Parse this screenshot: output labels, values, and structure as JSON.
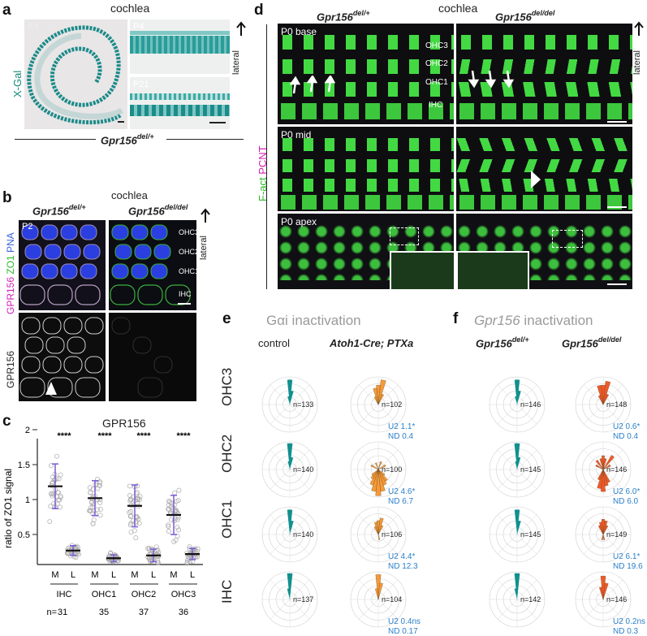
{
  "panel_labels": {
    "a": "a",
    "b": "b",
    "c": "c",
    "d": "d",
    "e": "e",
    "f": "f"
  },
  "panel_a": {
    "title": "cochlea",
    "stain": "X-Gal",
    "ages": [
      "P4",
      "P4",
      "P21"
    ],
    "genotype_base": "Gpr156",
    "genotype_sup": "del/+",
    "direction": "lateral"
  },
  "panel_b": {
    "title": "cochlea",
    "genotypes": [
      {
        "base": "Gpr156",
        "sup": "del/+"
      },
      {
        "base": "Gpr156",
        "sup": "del/del"
      }
    ],
    "age": "P2",
    "stain_labels": [
      "GPR156",
      "ZO1",
      "PNA"
    ],
    "stain_colors": [
      "#d21fb4",
      "#2eb82e",
      "#3a5fd9"
    ],
    "rows": [
      "OHC3",
      "OHC2",
      "OHC1",
      "IHC"
    ],
    "bottom_stain": "GPR156",
    "direction": "lateral"
  },
  "panel_c": {
    "title": "GPR156",
    "ylabel": "ratio of ZO1 signal",
    "yticks": [
      "0.5",
      "1",
      "1.5",
      "2"
    ],
    "significance": [
      "****",
      "****",
      "****",
      "****"
    ],
    "tick_labels": [
      "M",
      "L",
      "M",
      "L",
      "M",
      "L",
      "M",
      "L"
    ],
    "groups": [
      "IHC",
      "OHC1",
      "OHC2",
      "OHC3"
    ],
    "n_prefix": "n=",
    "counts": [
      "31",
      "35",
      "37",
      "36"
    ]
  },
  "chart_data": {
    "type": "scatter",
    "title": "GPR156",
    "ylabel": "ratio of ZO1 signal",
    "ylim": [
      0,
      2
    ],
    "categories": [
      "IHC M",
      "IHC L",
      "OHC1 M",
      "OHC1 L",
      "OHC2 M",
      "OHC2 L",
      "OHC3 M",
      "OHC3 L"
    ],
    "means": [
      1.12,
      0.2,
      0.95,
      0.09,
      0.84,
      0.13,
      0.71,
      0.15
    ],
    "sd": [
      0.32,
      0.07,
      0.25,
      0.05,
      0.3,
      0.09,
      0.28,
      0.08
    ],
    "n": [
      31,
      31,
      35,
      35,
      37,
      37,
      36,
      36
    ]
  },
  "panel_d": {
    "title": "cochlea",
    "genotypes": [
      {
        "base": "Gpr156",
        "sup": "del/+"
      },
      {
        "base": "Gpr156",
        "sup": "del/del"
      }
    ],
    "stain_labels": [
      "F-act",
      "PCNT"
    ],
    "stain_colors": [
      "#2eb82e",
      "#d21fb4"
    ],
    "regions": [
      "P0 base",
      "P0 mid",
      "P0 apex"
    ],
    "rows": [
      "OHC3",
      "OHC2",
      "OHC1",
      "IHC"
    ],
    "direction": "lateral"
  },
  "panel_e": {
    "title": "Gαi inactivation",
    "conditions": [
      "control",
      "Atoh1-Cre; PTXa"
    ],
    "cell_types": [
      "OHC3",
      "OHC2",
      "OHC1",
      "IHC"
    ],
    "control_n": [
      "n=133",
      "n=140",
      "n=140",
      "n=137"
    ],
    "ptx_n": [
      "n=102",
      "n=100",
      "n=106",
      "n=104"
    ],
    "ptx_u2": [
      "U2 1.1*",
      "U2 4.6*",
      "U2 4.4*",
      "U2 0.4ns"
    ],
    "ptx_nd": [
      "ND 0.4",
      "ND 6.7",
      "ND 12.3",
      "ND 0.17"
    ],
    "control_color": "#11908e",
    "ptx_color": "#f59a3a"
  },
  "panel_f": {
    "title_base": "Gpr156",
    "title_rest": " inactivation",
    "conditions": [
      {
        "base": "Gpr156",
        "sup": "del/+"
      },
      {
        "base": "Gpr156",
        "sup": "del/del"
      }
    ],
    "het_n": [
      "n=146",
      "n=145",
      "n=145",
      "n=142"
    ],
    "ko_n": [
      "n=148",
      "n=146",
      "n=149",
      "n=146"
    ],
    "ko_u2": [
      "U2 0.6*",
      "U2 6.0*",
      "U2 6.1*",
      "U2 0.2ns"
    ],
    "ko_nd": [
      "ND 0.4",
      "ND 6.0",
      "ND 19.6",
      "ND 0.3"
    ],
    "het_color": "#11908e",
    "ko_color": "#ef5a2a"
  }
}
